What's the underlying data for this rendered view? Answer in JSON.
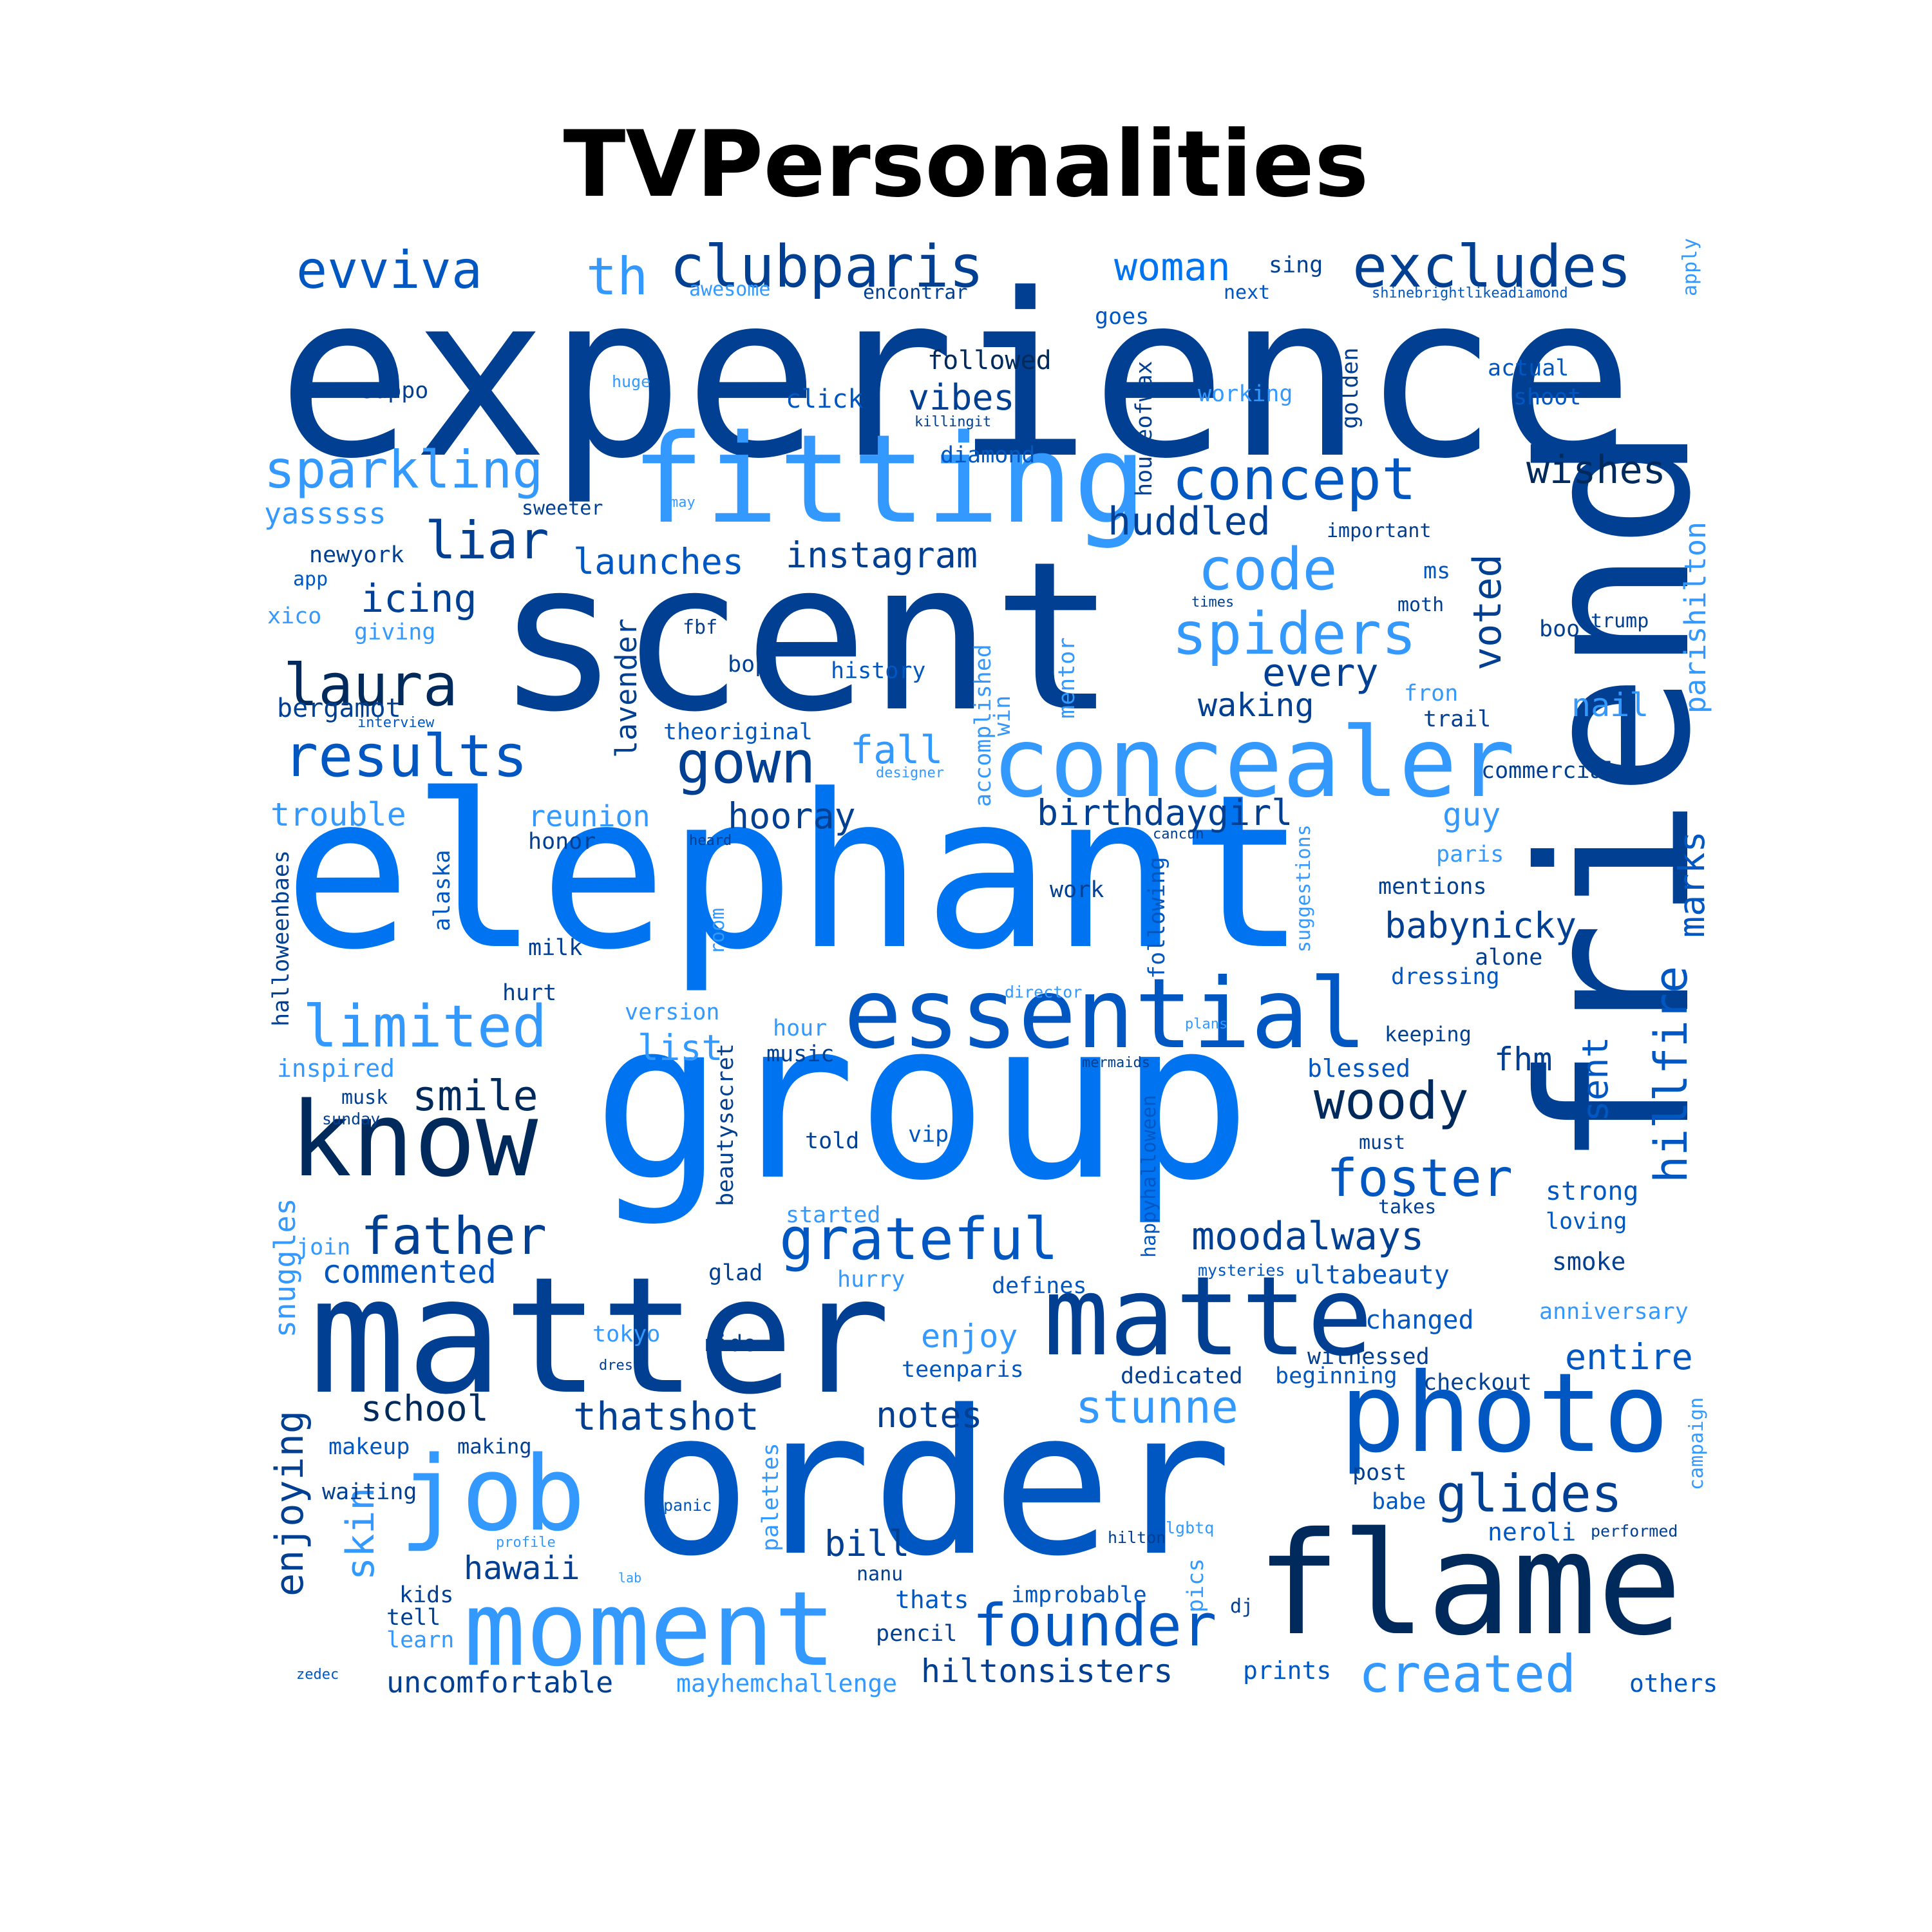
{
  "title": "TVPersonalities",
  "colors": {
    "c1": "#003F91",
    "c2": "#0057C2",
    "c3": "#0074F0",
    "c4": "#3399FF",
    "c5": "#002A5C",
    "c6": "#004AAD"
  },
  "words": [
    {
      "text": "experience",
      "color": "c1"
    },
    {
      "text": "scent",
      "color": "c1"
    },
    {
      "text": "friend",
      "color": "c1"
    },
    {
      "text": "elephant",
      "color": "c3"
    },
    {
      "text": "group",
      "color": "c3"
    },
    {
      "text": "order",
      "color": "c2"
    },
    {
      "text": "matter",
      "color": "c1"
    },
    {
      "text": "fitting",
      "color": "c4"
    },
    {
      "text": "flame",
      "color": "c5"
    },
    {
      "text": "photo",
      "color": "c2"
    },
    {
      "text": "concealer",
      "color": "c4"
    },
    {
      "text": "essential",
      "color": "c2"
    },
    {
      "text": "matte",
      "color": "c1"
    },
    {
      "text": "know",
      "color": "c5"
    },
    {
      "text": "moment",
      "color": "c4"
    },
    {
      "text": "job",
      "color": "c4"
    },
    {
      "text": "clubparis",
      "color": "c1"
    },
    {
      "text": "excludes",
      "color": "c1"
    },
    {
      "text": "evviva",
      "color": "c2"
    },
    {
      "text": "concept",
      "color": "c2"
    },
    {
      "text": "spiders",
      "color": "c4"
    },
    {
      "text": "code",
      "color": "c4"
    },
    {
      "text": "liar",
      "color": "c1"
    },
    {
      "text": "laura",
      "color": "c5"
    },
    {
      "text": "results",
      "color": "c2"
    },
    {
      "text": "gown",
      "color": "c1"
    },
    {
      "text": "sparkling",
      "color": "c4"
    },
    {
      "text": "limited",
      "color": "c4"
    },
    {
      "text": "founder",
      "color": "c2"
    },
    {
      "text": "grateful",
      "color": "c2"
    },
    {
      "text": "woody",
      "color": "c5"
    },
    {
      "text": "foster",
      "color": "c2"
    },
    {
      "text": "father",
      "color": "c1"
    },
    {
      "text": "th",
      "color": "c4"
    },
    {
      "text": "hillfire",
      "color": "c2"
    },
    {
      "text": "glides",
      "color": "c1"
    },
    {
      "text": "created",
      "color": "c4"
    },
    {
      "text": "stunne",
      "color": "c4"
    },
    {
      "text": "woman",
      "color": "c3"
    },
    {
      "text": "huddled",
      "color": "c1"
    },
    {
      "text": "wishes",
      "color": "c5"
    },
    {
      "text": "instagram",
      "color": "c1"
    },
    {
      "text": "launches",
      "color": "c2"
    },
    {
      "text": "icing",
      "color": "c1"
    },
    {
      "text": "voted",
      "color": "c1"
    },
    {
      "text": "every",
      "color": "c1"
    },
    {
      "text": "waking",
      "color": "c1"
    },
    {
      "text": "fall",
      "color": "c4"
    },
    {
      "text": "hooray",
      "color": "c1"
    },
    {
      "text": "birthdaygirl",
      "color": "c1"
    },
    {
      "text": "babynicky",
      "color": "c1"
    },
    {
      "text": "smile",
      "color": "c5"
    },
    {
      "text": "moodalways",
      "color": "c1"
    },
    {
      "text": "list",
      "color": "c4"
    },
    {
      "text": "school",
      "color": "c5"
    },
    {
      "text": "thatshot",
      "color": "c1"
    },
    {
      "text": "notes",
      "color": "c1"
    },
    {
      "text": "hawaii",
      "color": "c1"
    },
    {
      "text": "bill",
      "color": "c1"
    },
    {
      "text": "hiltonsisters",
      "color": "c1"
    },
    {
      "text": "uncomfortable",
      "color": "c1"
    },
    {
      "text": "mayhemchallenge",
      "color": "c4"
    },
    {
      "text": "prints",
      "color": "c2"
    },
    {
      "text": "others",
      "color": "c2"
    },
    {
      "text": "enjoying",
      "color": "c1"
    },
    {
      "text": "skin",
      "color": "c4"
    },
    {
      "text": "snuggles",
      "color": "c4"
    },
    {
      "text": "enjoy",
      "color": "c4"
    },
    {
      "text": "entire",
      "color": "c2"
    },
    {
      "text": "commented",
      "color": "c2"
    },
    {
      "text": "trouble",
      "color": "c4"
    },
    {
      "text": "reunion",
      "color": "c4"
    },
    {
      "text": "vibes",
      "color": "c1"
    },
    {
      "text": "followed",
      "color": "c5"
    },
    {
      "text": "click",
      "color": "c2"
    },
    {
      "text": "parishilton",
      "color": "c4"
    },
    {
      "text": "marks",
      "color": "c2"
    },
    {
      "text": "sent",
      "color": "c2"
    },
    {
      "text": "fhm",
      "color": "c1"
    },
    {
      "text": "nail",
      "color": "c4"
    },
    {
      "text": "guy",
      "color": "c4"
    },
    {
      "text": "yasssss",
      "color": "c4"
    },
    {
      "text": "newyork",
      "color": "c1"
    },
    {
      "text": "bergamot",
      "color": "c1"
    },
    {
      "text": "lavender",
      "color": "c1"
    },
    {
      "text": "accomplished",
      "color": "c4"
    },
    {
      "text": "theoriginal",
      "color": "c2"
    },
    {
      "text": "history",
      "color": "c2"
    },
    {
      "text": "bop",
      "color": "c1"
    },
    {
      "text": "fbf",
      "color": "c1"
    },
    {
      "text": "giving",
      "color": "c4"
    },
    {
      "text": "xico",
      "color": "c4"
    },
    {
      "text": "app",
      "color": "c2"
    },
    {
      "text": "sweeter",
      "color": "c1"
    },
    {
      "text": "diamond",
      "color": "c2"
    },
    {
      "text": "suppo",
      "color": "c1"
    },
    {
      "text": "awesome",
      "color": "c4"
    },
    {
      "text": "encontrar",
      "color": "c1"
    },
    {
      "text": "sing",
      "color": "c1"
    },
    {
      "text": "next",
      "color": "c2"
    },
    {
      "text": "shinebrightlikeadiamond",
      "color": "c2"
    },
    {
      "text": "apply",
      "color": "c4"
    },
    {
      "text": "goes",
      "color": "c2"
    },
    {
      "text": "actual",
      "color": "c2"
    },
    {
      "text": "shoot",
      "color": "c2"
    },
    {
      "text": "working",
      "color": "c4"
    },
    {
      "text": "golden",
      "color": "c1"
    },
    {
      "text": "houseofwax",
      "color": "c1"
    },
    {
      "text": "important",
      "color": "c1"
    },
    {
      "text": "ms",
      "color": "c2"
    },
    {
      "text": "moth",
      "color": "c1"
    },
    {
      "text": "boo",
      "color": "c1"
    },
    {
      "text": "trump",
      "color": "c1"
    },
    {
      "text": "fron",
      "color": "c4"
    },
    {
      "text": "trail",
      "color": "c1"
    },
    {
      "text": "commercial",
      "color": "c1"
    },
    {
      "text": "paris",
      "color": "c4"
    },
    {
      "text": "mentions",
      "color": "c1"
    },
    {
      "text": "alone",
      "color": "c1"
    },
    {
      "text": "dressing",
      "color": "c2"
    },
    {
      "text": "keeping",
      "color": "c1"
    },
    {
      "text": "blessed",
      "color": "c2"
    },
    {
      "text": "must",
      "color": "c1"
    },
    {
      "text": "takes",
      "color": "c1"
    },
    {
      "text": "strong",
      "color": "c2"
    },
    {
      "text": "loving",
      "color": "c2"
    },
    {
      "text": "smoke",
      "color": "c1"
    },
    {
      "text": "ultabeauty",
      "color": "c2"
    },
    {
      "text": "anniversary",
      "color": "c4"
    },
    {
      "text": "changed",
      "color": "c2"
    },
    {
      "text": "witnessed",
      "color": "c1"
    },
    {
      "text": "checkout",
      "color": "c1"
    },
    {
      "text": "beginning",
      "color": "c2"
    },
    {
      "text": "dedicated",
      "color": "c1"
    },
    {
      "text": "campaign",
      "color": "c4"
    },
    {
      "text": "post",
      "color": "c1"
    },
    {
      "text": "babe",
      "color": "c2"
    },
    {
      "text": "neroli",
      "color": "c2"
    },
    {
      "text": "performed",
      "color": "c1"
    },
    {
      "text": "improbable",
      "color": "c2"
    },
    {
      "text": "pencil",
      "color": "c1"
    },
    {
      "text": "thats",
      "color": "c2"
    },
    {
      "text": "nanu",
      "color": "c1"
    },
    {
      "text": "pics",
      "color": "c4"
    },
    {
      "text": "dj",
      "color": "c1"
    },
    {
      "text": "hilton",
      "color": "c1"
    },
    {
      "text": "lgbtq",
      "color": "c4"
    },
    {
      "text": "told",
      "color": "c1"
    },
    {
      "text": "vip",
      "color": "c2"
    },
    {
      "text": "started",
      "color": "c4"
    },
    {
      "text": "hurry",
      "color": "c4"
    },
    {
      "text": "glad",
      "color": "c1"
    },
    {
      "text": "defines",
      "color": "c2"
    },
    {
      "text": "ride",
      "color": "c1"
    },
    {
      "text": "tokyo",
      "color": "c4"
    },
    {
      "text": "teenparis",
      "color": "c2"
    },
    {
      "text": "palettes",
      "color": "c4"
    },
    {
      "text": "beautysecret",
      "color": "c1"
    },
    {
      "text": "happyhalloween",
      "color": "c2"
    },
    {
      "text": "mysteries",
      "color": "c2"
    },
    {
      "text": "music",
      "color": "c1"
    },
    {
      "text": "hour",
      "color": "c4"
    },
    {
      "text": "version",
      "color": "c4"
    },
    {
      "text": "room",
      "color": "c4"
    },
    {
      "text": "work",
      "color": "c1"
    },
    {
      "text": "following",
      "color": "c2"
    },
    {
      "text": "suggestions",
      "color": "c4"
    },
    {
      "text": "director",
      "color": "c4"
    },
    {
      "text": "plans",
      "color": "c4"
    },
    {
      "text": "mermaids",
      "color": "c1"
    },
    {
      "text": "honor",
      "color": "c1"
    },
    {
      "text": "heard",
      "color": "c1"
    },
    {
      "text": "cancun",
      "color": "c1"
    },
    {
      "text": "milk",
      "color": "c1"
    },
    {
      "text": "hurt",
      "color": "c1"
    },
    {
      "text": "alaska",
      "color": "c2"
    },
    {
      "text": "halloweenbaes",
      "color": "c1"
    },
    {
      "text": "inspired",
      "color": "c4"
    },
    {
      "text": "musk",
      "color": "c1"
    },
    {
      "text": "sunday",
      "color": "c1"
    },
    {
      "text": "join",
      "color": "c4"
    },
    {
      "text": "makeup",
      "color": "c2"
    },
    {
      "text": "making",
      "color": "c1"
    },
    {
      "text": "waiting",
      "color": "c1"
    },
    {
      "text": "kids",
      "color": "c1"
    },
    {
      "text": "tell",
      "color": "c1"
    },
    {
      "text": "learn",
      "color": "c4"
    },
    {
      "text": "zedec",
      "color": "c2"
    },
    {
      "text": "profile",
      "color": "c4"
    },
    {
      "text": "lab",
      "color": "c4"
    },
    {
      "text": "panic",
      "color": "c2"
    },
    {
      "text": "dress",
      "color": "c1"
    },
    {
      "text": "huge",
      "color": "c4"
    },
    {
      "text": "killingit",
      "color": "c1"
    },
    {
      "text": "may",
      "color": "c4"
    },
    {
      "text": "times",
      "color": "c1"
    },
    {
      "text": "interview",
      "color": "c2"
    },
    {
      "text": "designer",
      "color": "c4"
    },
    {
      "text": "mentor",
      "color": "c4"
    },
    {
      "text": "win",
      "color": "c4"
    }
  ]
}
